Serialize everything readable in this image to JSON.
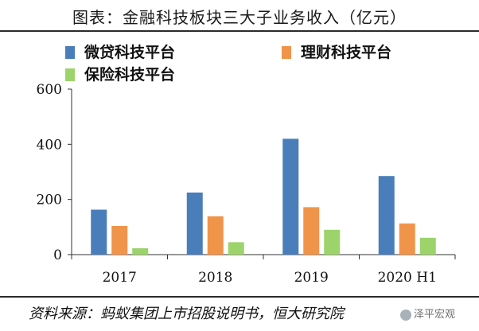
{
  "title": "图表：金融科技板块三大子业务收入（亿元）",
  "source": "资料来源：蚂蚁集团上市招股说明书，恒大研究院",
  "watermark": "泽平宏观",
  "chart_data": {
    "type": "bar",
    "categories": [
      "2017",
      "2018",
      "2019",
      "2020 H1"
    ],
    "series": [
      {
        "name": "微贷科技平台",
        "values": [
          163,
          225,
          420,
          285
        ],
        "color": "#4a7ebb"
      },
      {
        "name": "理财科技平台",
        "values": [
          104,
          139,
          172,
          113
        ],
        "color": "#f0944a"
      },
      {
        "name": "保险科技平台",
        "values": [
          23,
          45,
          90,
          61
        ],
        "color": "#9dd36b"
      }
    ],
    "ylim": [
      0,
      600
    ],
    "yticks": [
      "0",
      "200",
      "400",
      "600"
    ],
    "xlabel": "",
    "ylabel": ""
  }
}
